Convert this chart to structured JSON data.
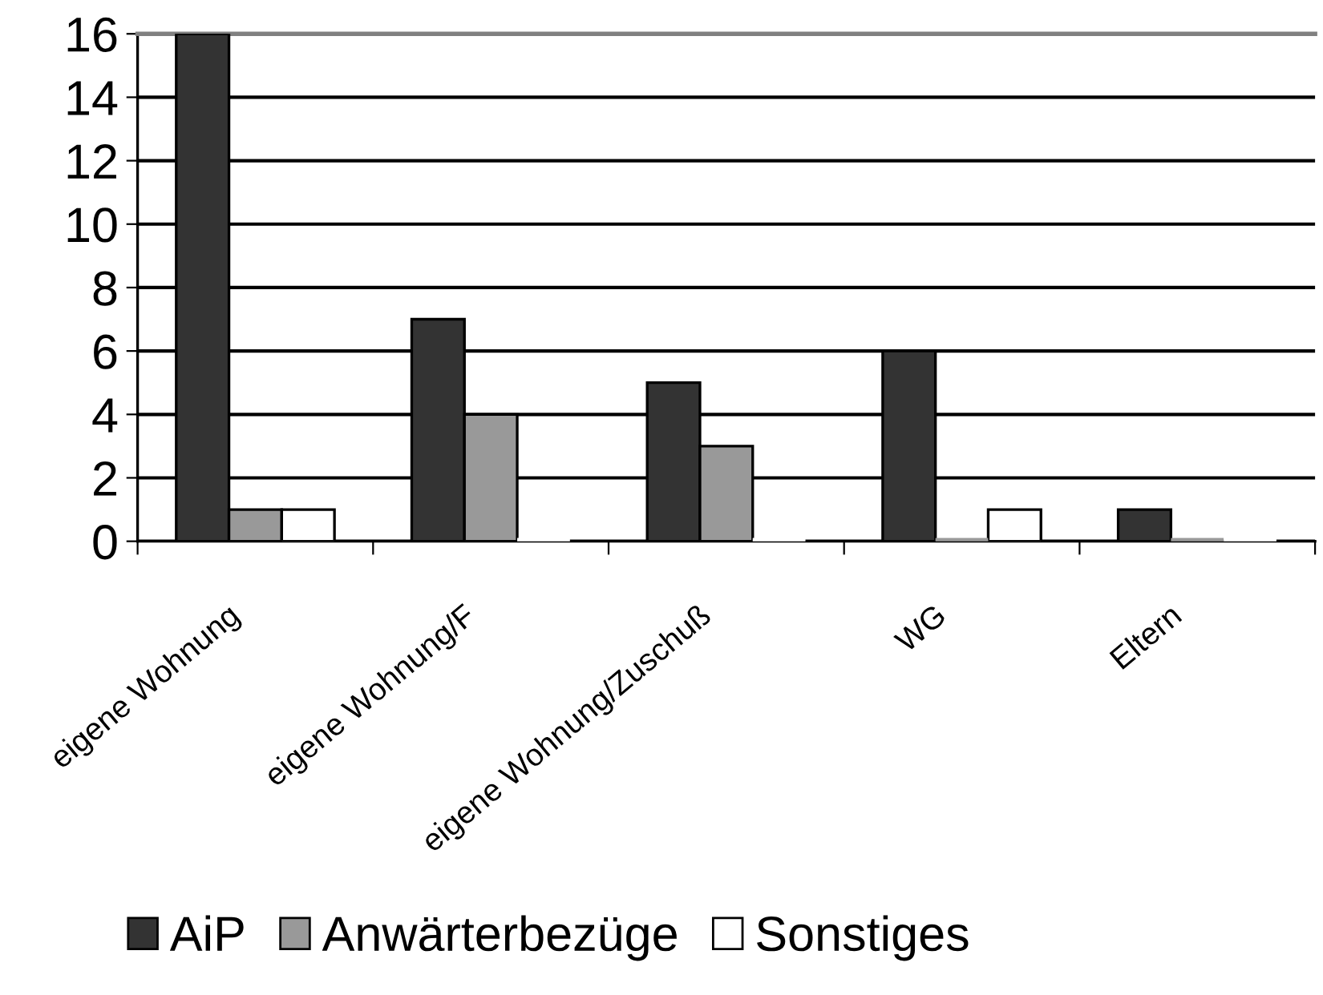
{
  "chart_data": {
    "type": "bar",
    "categories": [
      "eigene Wohnung",
      "eigene Wohnung/F",
      "eigene Wohnung/Zuschuß",
      "WG",
      "Eltern"
    ],
    "series": [
      {
        "name": "AiP",
        "color": "#333333",
        "values": [
          16,
          7,
          5,
          6,
          1
        ]
      },
      {
        "name": "Anwärterbezüge",
        "color": "#999999",
        "values": [
          1,
          4,
          3,
          0,
          0
        ]
      },
      {
        "name": "Sonstiges",
        "color": "#ffffff",
        "values": [
          1,
          0,
          0,
          1,
          0
        ]
      }
    ],
    "ylim": [
      0,
      16
    ],
    "yticks": [
      0,
      2,
      4,
      6,
      8,
      10,
      12,
      14,
      16
    ],
    "grid": "y",
    "legend": "bottom"
  }
}
